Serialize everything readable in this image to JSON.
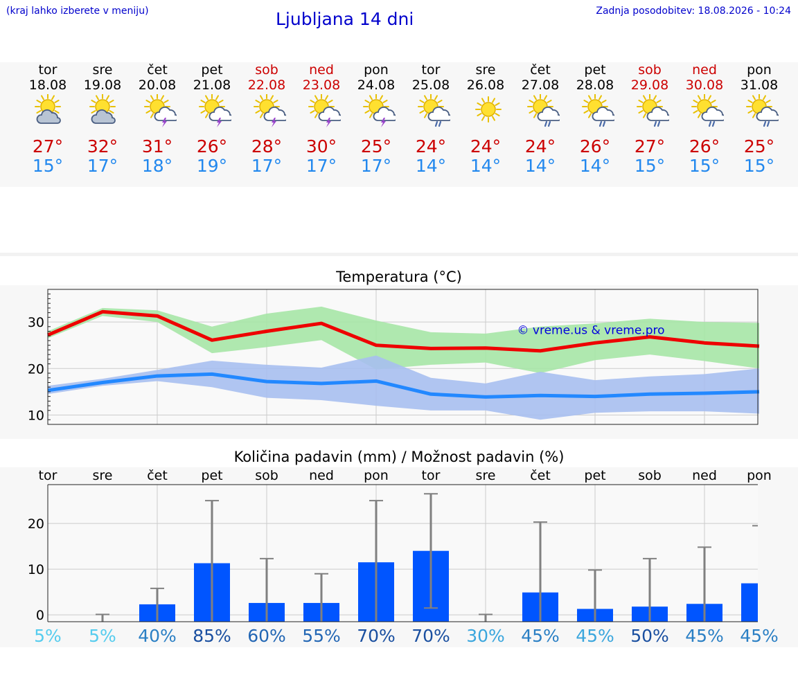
{
  "header": {
    "hint": "(kraj lahko izberete v meniju)",
    "title": "Ljubljana 14 dni",
    "updated": "Zadnja posodobitev: 18.08.2026 - 10:24"
  },
  "colors": {
    "max": "#cc0000",
    "min": "#2288ee",
    "link": "#0000cc",
    "bar": "#0055ff",
    "whisker": "#808080"
  },
  "days": [
    {
      "name": "tor",
      "date": "18.08",
      "weekend": false,
      "icon": "sun-cloud-icon",
      "tmax": "27°",
      "tmin": "15°"
    },
    {
      "name": "sre",
      "date": "19.08",
      "weekend": false,
      "icon": "sun-cloud-icon",
      "tmax": "32°",
      "tmin": "17°"
    },
    {
      "name": "čet",
      "date": "20.08",
      "weekend": false,
      "icon": "sun-thunderstorm-icon",
      "tmax": "31°",
      "tmin": "18°"
    },
    {
      "name": "pet",
      "date": "21.08",
      "weekend": false,
      "icon": "sun-thunderstorm-icon",
      "tmax": "26°",
      "tmin": "19°"
    },
    {
      "name": "sob",
      "date": "22.08",
      "weekend": true,
      "icon": "sun-thunderstorm-icon",
      "tmax": "28°",
      "tmin": "17°"
    },
    {
      "name": "ned",
      "date": "23.08",
      "weekend": true,
      "icon": "sun-thunderstorm-icon",
      "tmax": "30°",
      "tmin": "17°"
    },
    {
      "name": "pon",
      "date": "24.08",
      "weekend": false,
      "icon": "sun-thunderstorm-icon",
      "tmax": "25°",
      "tmin": "17°"
    },
    {
      "name": "tor",
      "date": "25.08",
      "weekend": false,
      "icon": "sun-rain-icon",
      "tmax": "24°",
      "tmin": "14°"
    },
    {
      "name": "sre",
      "date": "26.08",
      "weekend": false,
      "icon": "sun-icon",
      "tmax": "24°",
      "tmin": "14°"
    },
    {
      "name": "čet",
      "date": "27.08",
      "weekend": false,
      "icon": "sun-rain-icon",
      "tmax": "24°",
      "tmin": "14°"
    },
    {
      "name": "pet",
      "date": "28.08",
      "weekend": false,
      "icon": "sun-rain-icon",
      "tmax": "26°",
      "tmin": "14°"
    },
    {
      "name": "sob",
      "date": "29.08",
      "weekend": true,
      "icon": "sun-rain-icon",
      "tmax": "27°",
      "tmin": "15°"
    },
    {
      "name": "ned",
      "date": "30.08",
      "weekend": true,
      "icon": "sun-rain-icon",
      "tmax": "26°",
      "tmin": "15°"
    },
    {
      "name": "pon",
      "date": "31.08",
      "weekend": false,
      "icon": "sun-rain-icon",
      "tmax": "25°",
      "tmin": "15°"
    }
  ],
  "chart_data": [
    {
      "type": "line",
      "title": "Temperatura (°C)",
      "watermark": "© vreme.us & vreme.pro",
      "x": [
        0,
        1,
        2,
        3,
        4,
        5,
        6,
        7,
        8,
        9,
        10,
        11,
        12,
        13
      ],
      "ylim": [
        8,
        37
      ],
      "yticks": [
        "10",
        "20",
        "30"
      ],
      "grid": true,
      "series": [
        {
          "values": [
            27.2,
            32.2,
            31.3,
            26.1,
            28.0,
            29.7,
            25.0,
            24.3,
            24.4,
            23.8,
            25.5,
            26.8,
            25.5,
            24.8
          ],
          "band_low": [
            26.5,
            31.3,
            30.0,
            23.3,
            24.6,
            26.1,
            19.8,
            20.8,
            21.3,
            19.0,
            21.8,
            23.0,
            21.6,
            20.0
          ],
          "band_high": [
            28.0,
            33.0,
            32.5,
            29.0,
            31.8,
            33.3,
            30.3,
            27.8,
            27.5,
            29.0,
            29.7,
            30.7,
            30.0,
            29.8
          ]
        },
        {
          "values": [
            15.3,
            17.0,
            18.4,
            18.8,
            17.2,
            16.8,
            17.3,
            14.5,
            13.9,
            14.2,
            14.0,
            14.5,
            14.7,
            15.0
          ],
          "band_low": [
            14.5,
            16.3,
            17.3,
            16.0,
            13.7,
            13.2,
            12.0,
            11.0,
            11.0,
            9.0,
            10.5,
            10.8,
            10.8,
            10.3
          ],
          "band_high": [
            16.3,
            17.8,
            19.7,
            21.7,
            20.8,
            20.2,
            22.8,
            18.0,
            16.8,
            19.3,
            17.5,
            18.3,
            18.8,
            20.0
          ]
        }
      ]
    },
    {
      "type": "bar",
      "title": "Količina padavin (mm) / Možnost padavin (%)",
      "categories": [
        "tor",
        "sre",
        "čet",
        "pet",
        "sob",
        "ned",
        "pon",
        "tor",
        "sre",
        "čet",
        "pet",
        "sob",
        "ned",
        "pon"
      ],
      "values": [
        0,
        0,
        2.3,
        11.3,
        2.6,
        2.6,
        11.5,
        14.0,
        0,
        4.9,
        1.3,
        1.8,
        2.4,
        6.9
      ],
      "error_high": [
        0,
        0.1,
        5.8,
        25.0,
        12.3,
        9.0,
        25.0,
        26.5,
        0.1,
        20.3,
        9.8,
        12.3,
        14.8,
        19.5
      ],
      "error_low": [
        0,
        0,
        0,
        0,
        0,
        0,
        0,
        1.5,
        0,
        0,
        0,
        0,
        0,
        0
      ],
      "probability": [
        "5%",
        "5%",
        "40%",
        "85%",
        "60%",
        "55%",
        "70%",
        "70%",
        "30%",
        "45%",
        "45%",
        "50%",
        "45%",
        "45%"
      ],
      "probability_colors": [
        "#55ccee",
        "#55ccee",
        "#2a7fc4",
        "#1a4fa0",
        "#2266b4",
        "#2266b4",
        "#1a4fa0",
        "#1a4fa0",
        "#3aa6dd",
        "#2a7fc4",
        "#3aa6dd",
        "#1a4fa0",
        "#2a7fc4",
        "#2a7fc4"
      ],
      "ylim": [
        -1.5,
        28.5
      ],
      "yticks": [
        "0",
        "10",
        "20"
      ],
      "grid": true
    }
  ]
}
